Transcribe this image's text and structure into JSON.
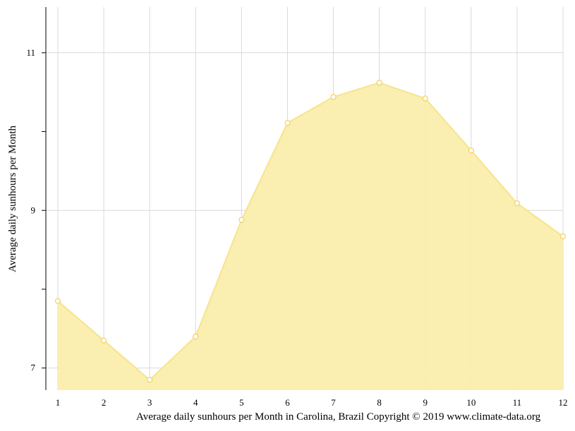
{
  "chart_data": {
    "type": "area",
    "x": [
      1,
      2,
      3,
      4,
      5,
      6,
      7,
      8,
      9,
      10,
      11,
      12
    ],
    "series": [
      {
        "values": [
          7.85,
          7.35,
          6.85,
          7.4,
          8.88,
          10.11,
          10.44,
          10.62,
          10.42,
          9.76,
          9.09,
          8.67
        ]
      }
    ],
    "x_tick_labels": [
      "1",
      "2",
      "3",
      "4",
      "5",
      "6",
      "7",
      "8",
      "9",
      "10",
      "11",
      "12"
    ],
    "y_tick_labels": [
      "7",
      "9",
      "11"
    ],
    "ylabel": "Average daily sunhours per Month",
    "caption": "Average daily sunhours per Month in Carolina, Brazil Copyright © 2019 www.climate-data.org",
    "ylim": [
      6.72,
      11.58
    ],
    "xlim": [
      1,
      12
    ],
    "grid": true,
    "colors": {
      "fill": "#faeeaa",
      "line": "#f7e48a",
      "marker_stroke": "#f0d060",
      "grid": "#d9d9d9"
    }
  }
}
